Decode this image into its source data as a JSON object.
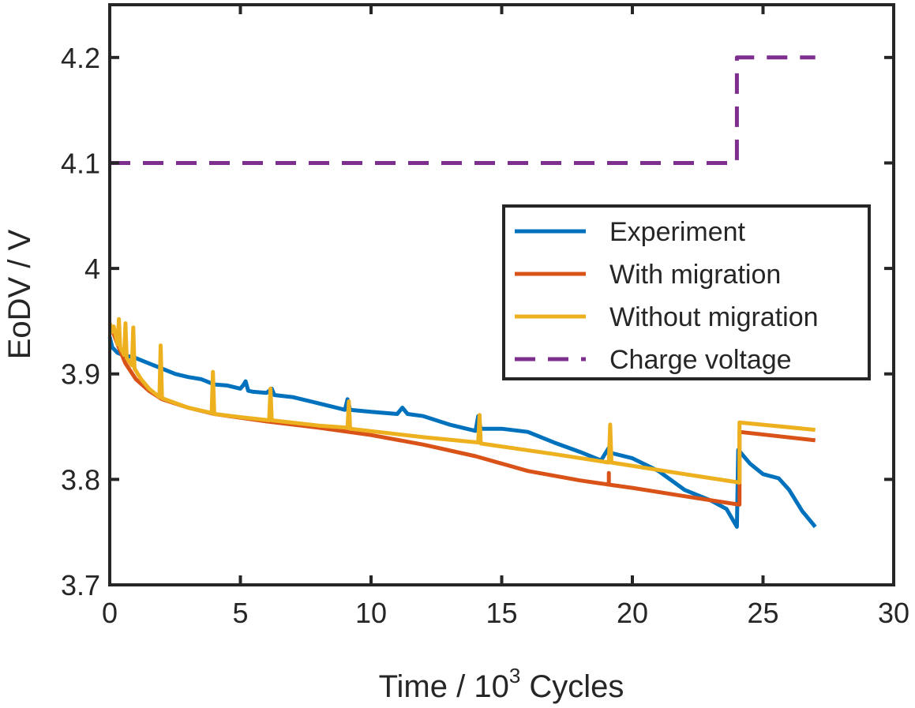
{
  "chart_data": {
    "type": "line",
    "title": "",
    "xlabel": {
      "prefix": "Time  /  10",
      "superscript": "3",
      "suffix": " Cycles"
    },
    "ylabel": "EoDV  /  V",
    "xlim": [
      0,
      30
    ],
    "ylim": [
      3.7,
      4.25
    ],
    "xticks": [
      0,
      5,
      10,
      15,
      20,
      25,
      30
    ],
    "xtick_labels": [
      "0",
      "5",
      "10",
      "15",
      "20",
      "25",
      "30"
    ],
    "yticks": [
      3.7,
      3.8,
      3.9,
      4.0,
      4.1,
      4.2
    ],
    "ytick_labels": [
      "3.7",
      "3.8",
      "3.9",
      "4",
      "4.1",
      "4.2"
    ],
    "grid": false,
    "legend_position": "center-right",
    "series": [
      {
        "name": "Experiment",
        "color": "#0072BD",
        "dash": "solid",
        "points": [
          [
            0,
            3.935
          ],
          [
            0.1,
            3.925
          ],
          [
            0.3,
            3.92
          ],
          [
            0.5,
            3.918
          ],
          [
            1,
            3.915
          ],
          [
            1.5,
            3.91
          ],
          [
            2,
            3.905
          ],
          [
            2.5,
            3.9
          ],
          [
            3,
            3.897
          ],
          [
            3.5,
            3.895
          ],
          [
            4,
            3.89
          ],
          [
            4.5,
            3.889
          ],
          [
            5,
            3.886
          ],
          [
            5.1,
            3.889
          ],
          [
            5.2,
            3.893
          ],
          [
            5.3,
            3.884
          ],
          [
            5.5,
            3.883
          ],
          [
            6,
            3.882
          ],
          [
            6.2,
            3.886
          ],
          [
            6.3,
            3.88
          ],
          [
            7,
            3.878
          ],
          [
            8,
            3.872
          ],
          [
            9,
            3.866
          ],
          [
            9.1,
            3.876
          ],
          [
            9.2,
            3.866
          ],
          [
            10,
            3.864
          ],
          [
            11,
            3.862
          ],
          [
            11.2,
            3.868
          ],
          [
            11.4,
            3.862
          ],
          [
            12,
            3.86
          ],
          [
            13,
            3.852
          ],
          [
            14,
            3.846
          ],
          [
            14.1,
            3.86
          ],
          [
            14.2,
            3.848
          ],
          [
            15,
            3.848
          ],
          [
            16,
            3.845
          ],
          [
            17,
            3.835
          ],
          [
            18,
            3.826
          ],
          [
            18.8,
            3.818
          ],
          [
            19.1,
            3.83
          ],
          [
            19.2,
            3.825
          ],
          [
            20,
            3.82
          ],
          [
            21,
            3.808
          ],
          [
            22,
            3.79
          ],
          [
            23,
            3.78
          ],
          [
            23.6,
            3.772
          ],
          [
            24,
            3.755
          ],
          [
            24.05,
            3.828
          ],
          [
            24.5,
            3.815
          ],
          [
            25,
            3.805
          ],
          [
            25.6,
            3.801
          ],
          [
            26,
            3.79
          ],
          [
            26.5,
            3.77
          ],
          [
            27,
            3.755
          ]
        ]
      },
      {
        "name": "With migration",
        "color": "#D95319",
        "dash": "solid",
        "points": [
          [
            0,
            3.948
          ],
          [
            0.3,
            3.928
          ],
          [
            0.6,
            3.91
          ],
          [
            1,
            3.895
          ],
          [
            1.5,
            3.884
          ],
          [
            2,
            3.876
          ],
          [
            3,
            3.868
          ],
          [
            4,
            3.862
          ],
          [
            6,
            3.855
          ],
          [
            8,
            3.849
          ],
          [
            10,
            3.842
          ],
          [
            12,
            3.833
          ],
          [
            14,
            3.822
          ],
          [
            16,
            3.808
          ],
          [
            18,
            3.799
          ],
          [
            19.1,
            3.795
          ],
          [
            19.1,
            3.806
          ],
          [
            19.1,
            3.795
          ],
          [
            20,
            3.792
          ],
          [
            22,
            3.784
          ],
          [
            24.1,
            3.776
          ],
          [
            24.1,
            3.845
          ],
          [
            27,
            3.837
          ]
        ]
      },
      {
        "name": "Without migration",
        "color": "#EDB120",
        "dash": "solid",
        "points": [
          [
            0,
            3.948
          ],
          [
            0.1,
            3.94
          ],
          [
            0.15,
            3.945
          ],
          [
            0.3,
            3.928
          ],
          [
            0.35,
            3.952
          ],
          [
            0.4,
            3.925
          ],
          [
            0.55,
            3.918
          ],
          [
            0.6,
            3.948
          ],
          [
            0.65,
            3.915
          ],
          [
            0.85,
            3.908
          ],
          [
            0.9,
            3.944
          ],
          [
            0.95,
            3.905
          ],
          [
            1.2,
            3.895
          ],
          [
            1.5,
            3.886
          ],
          [
            1.9,
            3.878
          ],
          [
            1.95,
            3.927
          ],
          [
            2,
            3.877
          ],
          [
            3,
            3.868
          ],
          [
            3.9,
            3.863
          ],
          [
            3.95,
            3.902
          ],
          [
            4,
            3.862
          ],
          [
            5,
            3.859
          ],
          [
            6.1,
            3.856
          ],
          [
            6.15,
            3.886
          ],
          [
            6.2,
            3.856
          ],
          [
            8,
            3.851
          ],
          [
            9.1,
            3.849
          ],
          [
            9.15,
            3.874
          ],
          [
            9.2,
            3.848
          ],
          [
            12,
            3.84
          ],
          [
            14.1,
            3.835
          ],
          [
            14.15,
            3.861
          ],
          [
            14.2,
            3.834
          ],
          [
            17,
            3.824
          ],
          [
            19.1,
            3.816
          ],
          [
            19.15,
            3.852
          ],
          [
            19.2,
            3.816
          ],
          [
            22,
            3.805
          ],
          [
            24.1,
            3.797
          ],
          [
            24.1,
            3.854
          ],
          [
            27,
            3.847
          ]
        ]
      },
      {
        "name": "Charge voltage",
        "color": "#7E2F8E",
        "dash": "dashed",
        "points": [
          [
            0,
            4.1
          ],
          [
            24,
            4.1
          ],
          [
            24,
            4.2
          ],
          [
            27,
            4.2
          ]
        ]
      }
    ]
  }
}
